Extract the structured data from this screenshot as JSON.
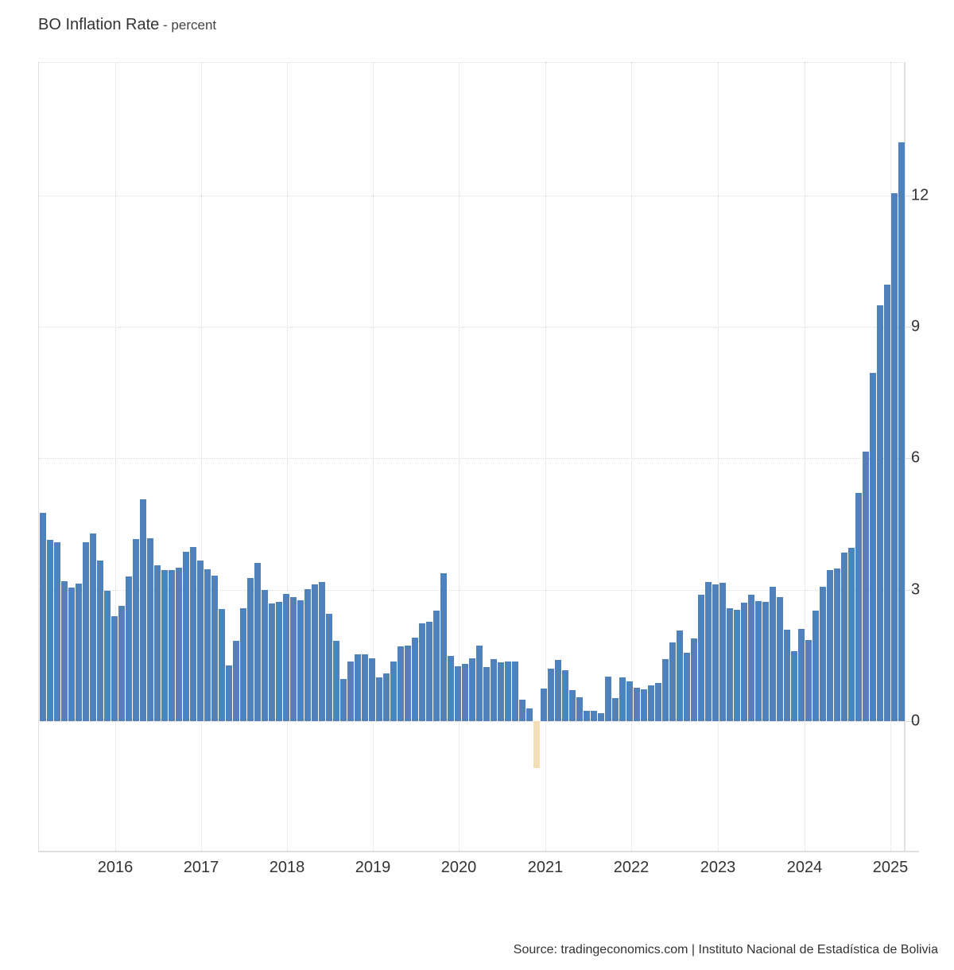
{
  "title": {
    "main": "BO Inflation Rate",
    "unit": " - percent"
  },
  "source": "Source: tradingeconomics.com | Instituto Nacional de Estadística de Bolivia",
  "colors": {
    "positive": "#4f81bd",
    "negative": "#f5deb3",
    "grid": "#dcdcdc",
    "text": "#333333"
  },
  "chart_data": {
    "type": "bar",
    "title": "BO Inflation Rate - percent",
    "xlabel": "",
    "ylabel": "percent",
    "ylim": [
      -3,
      15
    ],
    "y_ticks": [
      0,
      3,
      6,
      9,
      12
    ],
    "x_tick_labels": [
      "2016",
      "2017",
      "2018",
      "2019",
      "2020",
      "2021",
      "2022",
      "2023",
      "2024",
      "2025"
    ],
    "grid": true,
    "legend": "none",
    "frequency": "monthly",
    "start": "2015-02",
    "end": "2025-02",
    "values": [
      4.76,
      4.13,
      4.09,
      3.19,
      3.05,
      3.14,
      4.09,
      4.29,
      3.67,
      2.97,
      2.39,
      2.64,
      3.3,
      4.15,
      5.07,
      4.18,
      3.55,
      3.45,
      3.45,
      3.5,
      3.86,
      3.97,
      3.67,
      3.46,
      3.33,
      2.55,
      1.27,
      1.84,
      2.58,
      3.27,
      3.62,
      3.0,
      2.68,
      2.72,
      2.91,
      2.84,
      2.75,
      3.01,
      3.13,
      3.17,
      2.45,
      1.84,
      0.96,
      1.36,
      1.52,
      1.52,
      1.44,
      0.99,
      1.08,
      1.37,
      1.71,
      1.73,
      1.91,
      2.24,
      2.27,
      2.53,
      3.38,
      1.48,
      1.25,
      1.3,
      1.44,
      1.73,
      1.23,
      1.41,
      1.34,
      1.36,
      1.37,
      0.49,
      0.29,
      -1.07,
      0.74,
      1.19,
      1.39,
      1.16,
      0.7,
      0.55,
      0.23,
      0.23,
      0.19,
      1.02,
      0.53,
      0.99,
      0.91,
      0.77,
      0.73,
      0.81,
      0.88,
      1.42,
      1.8,
      2.06,
      1.56,
      1.88,
      2.89,
      3.18,
      3.12,
      3.15,
      2.58,
      2.54,
      2.71,
      2.89,
      2.74,
      2.72,
      3.06,
      2.84,
      2.08,
      1.6,
      2.11,
      1.86,
      2.53,
      3.07,
      3.44,
      3.48,
      3.84,
      3.96,
      5.21,
      6.16,
      7.95,
      9.49,
      9.97,
      12.05,
      13.22
    ]
  }
}
